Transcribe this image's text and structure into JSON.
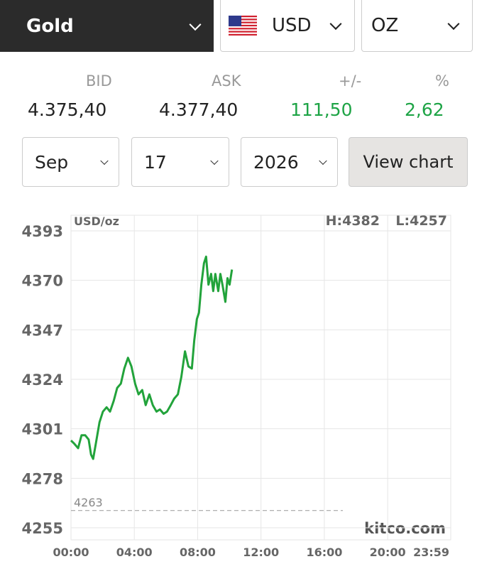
{
  "header": {
    "metal": "Gold",
    "currency": "USD",
    "unit": "OZ"
  },
  "quote": {
    "labels": [
      "BID",
      "ASK",
      "+/-",
      "%"
    ],
    "values": [
      "4.375,40",
      "4.377,40",
      "111,50",
      "2,62"
    ]
  },
  "date_picker": {
    "month": "Sep",
    "day": "17",
    "year": "2026",
    "button": "View chart"
  },
  "chart_data": {
    "type": "line",
    "unit_label": "USD/oz",
    "high_label": "H:4382",
    "low_label": "L:4257",
    "watermark": "kitco.com",
    "reference_line": {
      "value": 4263,
      "label": "4263"
    },
    "x": [
      0,
      13,
      27,
      40,
      54,
      67,
      76,
      84,
      94,
      108,
      121,
      135,
      148,
      162,
      175,
      189,
      202,
      216,
      229,
      243,
      256,
      270,
      283,
      297,
      310,
      324,
      337,
      351,
      364,
      378,
      391,
      405,
      418,
      432,
      445,
      458,
      467,
      477,
      485,
      494,
      504,
      512,
      521,
      531,
      539,
      547,
      558,
      566,
      574,
      585,
      593,
      601,
      610
    ],
    "series": [
      {
        "name": "Gold",
        "color": "#22a33b",
        "values": [
          4295.6,
          4294,
          4292,
          4298,
          4298,
          4296,
          4289,
          4287,
          4294,
          4304,
          4309,
          4311,
          4309,
          4314,
          4320,
          4322,
          4329,
          4334,
          4330,
          4322,
          4317,
          4319,
          4312,
          4317,
          4312,
          4309,
          4310,
          4308,
          4309,
          4312,
          4315,
          4317,
          4325,
          4337,
          4330,
          4329,
          4342,
          4352,
          4355,
          4368,
          4378,
          4381,
          4368,
          4373,
          4365,
          4373,
          4365,
          4373,
          4368,
          4360,
          4371,
          4368,
          4375
        ]
      }
    ],
    "xlim": [
      0,
      1439
    ],
    "xticks": [
      {
        "value": 0,
        "label": "00:00"
      },
      {
        "value": 240,
        "label": "04:00"
      },
      {
        "value": 480,
        "label": "08:00"
      },
      {
        "value": 720,
        "label": "12:00"
      },
      {
        "value": 960,
        "label": "16:00"
      },
      {
        "value": 1200,
        "label": "20:00"
      },
      {
        "value": 1439,
        "label": "23:59"
      }
    ],
    "ylim": [
      4255,
      4393
    ],
    "yticks": [
      4255,
      4278,
      4301,
      4324,
      4347,
      4370,
      4393
    ],
    "grid": true
  }
}
